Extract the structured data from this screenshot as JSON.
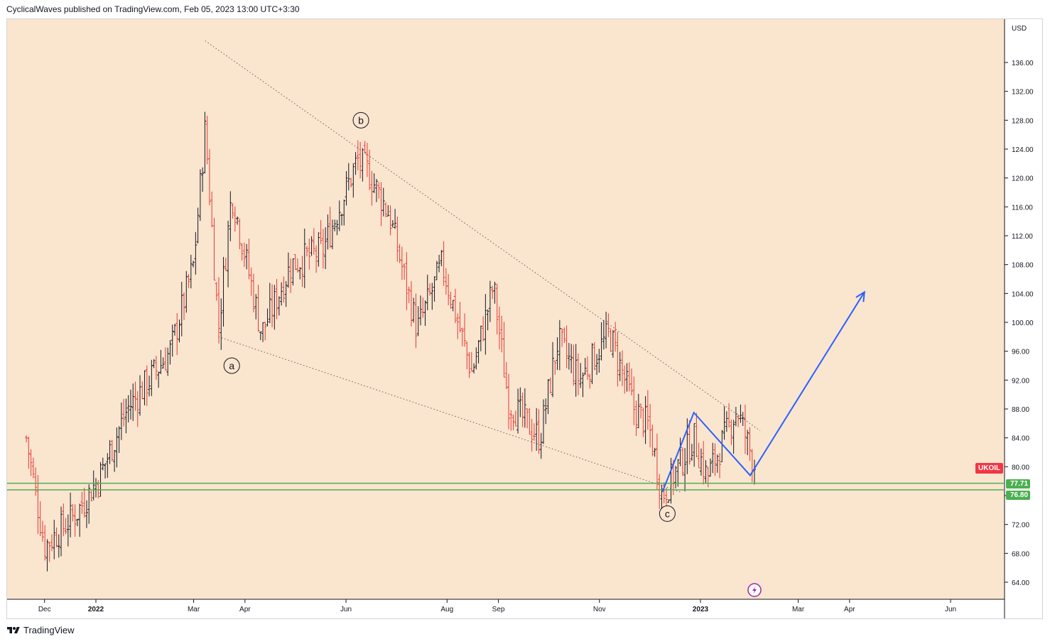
{
  "header": {
    "publisher_text": "CyclicalWaves published on TradingView.com, Feb 05, 2023 13:00 UTC+3:30"
  },
  "footer": {
    "brand": "TradingView"
  },
  "colors": {
    "background": "#fae5cf",
    "up_bar": "#131722",
    "down_bar": "#e53935",
    "support_line": "#4caf50",
    "projection_line": "#2962ff",
    "trend_line": "#787b86",
    "ticker_badge": "#f23645"
  },
  "chart_data": {
    "type": "ohlc",
    "symbol": "UKOIL",
    "currency": "USD",
    "ylim": [
      61,
      142
    ],
    "y_ticks": [
      "64.00",
      "68.00",
      "72.00",
      "76.00",
      "80.00",
      "84.00",
      "88.00",
      "92.00",
      "96.00",
      "100.00",
      "104.00",
      "108.00",
      "112.00",
      "116.00",
      "120.00",
      "124.00",
      "128.00",
      "132.00",
      "136.00"
    ],
    "x_ticks": [
      {
        "label": "Dec",
        "date": "2021-12-01",
        "bold": false
      },
      {
        "label": "2022",
        "date": "2022-01-01",
        "bold": true
      },
      {
        "label": "Mar",
        "date": "2022-03-01",
        "bold": false
      },
      {
        "label": "Apr",
        "date": "2022-04-01",
        "bold": false
      },
      {
        "label": "Jun",
        "date": "2022-06-01",
        "bold": false
      },
      {
        "label": "Aug",
        "date": "2022-08-01",
        "bold": false
      },
      {
        "label": "Sep",
        "date": "2022-09-01",
        "bold": false
      },
      {
        "label": "Nov",
        "date": "2022-11-01",
        "bold": false
      },
      {
        "label": "2023",
        "date": "2023-01-01",
        "bold": true
      },
      {
        "label": "Mar",
        "date": "2023-03-01",
        "bold": false
      },
      {
        "label": "Apr",
        "date": "2023-04-01",
        "bold": false
      },
      {
        "label": "Jun",
        "date": "2023-06-01",
        "bold": false
      }
    ],
    "price_path": [
      {
        "date": "2021-11-20",
        "close": 84.0
      },
      {
        "date": "2021-12-01",
        "close": 69.0
      },
      {
        "date": "2021-12-20",
        "close": 73.5
      },
      {
        "date": "2022-01-03",
        "close": 78.5
      },
      {
        "date": "2022-01-20",
        "close": 88.0
      },
      {
        "date": "2022-02-15",
        "close": 96.0
      },
      {
        "date": "2022-03-01",
        "close": 108.0
      },
      {
        "date": "2022-03-08",
        "close": 127.0
      },
      {
        "date": "2022-03-16",
        "close": 99.0
      },
      {
        "date": "2022-03-24",
        "close": 118.0
      },
      {
        "date": "2022-04-11",
        "close": 98.5
      },
      {
        "date": "2022-04-29",
        "close": 108.0
      },
      {
        "date": "2022-05-18",
        "close": 110.0
      },
      {
        "date": "2022-06-08",
        "close": 122.5
      },
      {
        "date": "2022-06-14",
        "close": 121.0
      },
      {
        "date": "2022-06-27",
        "close": 115.0
      },
      {
        "date": "2022-07-14",
        "close": 99.0
      },
      {
        "date": "2022-07-29",
        "close": 108.0
      },
      {
        "date": "2022-08-16",
        "close": 93.0
      },
      {
        "date": "2022-08-29",
        "close": 105.0
      },
      {
        "date": "2022-09-07",
        "close": 89.0
      },
      {
        "date": "2022-09-26",
        "close": 84.0
      },
      {
        "date": "2022-10-07",
        "close": 97.5
      },
      {
        "date": "2022-10-20",
        "close": 92.0
      },
      {
        "date": "2022-11-07",
        "close": 98.5
      },
      {
        "date": "2022-11-22",
        "close": 88.0
      },
      {
        "date": "2022-12-01",
        "close": 85.5
      },
      {
        "date": "2022-12-09",
        "close": 76.0
      },
      {
        "date": "2022-12-28",
        "close": 84.0
      },
      {
        "date": "2023-01-05",
        "close": 78.5
      },
      {
        "date": "2023-01-23",
        "close": 88.0
      },
      {
        "date": "2023-02-03",
        "close": 80.0
      }
    ],
    "support_levels": [
      "77.71",
      "76.80"
    ],
    "current_price_label": "UKOIL",
    "trend_lines": [
      {
        "name": "upper",
        "from": {
          "date": "2022-03-08",
          "price": 139.0
        },
        "to": {
          "date": "2023-02-06",
          "price": 85.0
        }
      },
      {
        "name": "lower",
        "from": {
          "date": "2022-03-16",
          "price": 98.0
        },
        "to": {
          "date": "2022-12-20",
          "price": 76.5
        }
      }
    ],
    "projection": [
      {
        "date": "2022-12-09",
        "price": 76.5
      },
      {
        "date": "2022-12-28",
        "price": 87.5
      },
      {
        "date": "2023-01-31",
        "price": 78.8
      },
      {
        "date": "2023-04-10",
        "price": 104.2
      }
    ],
    "wave_labels": [
      {
        "text": "a",
        "date": "2022-03-24",
        "price": 94.0
      },
      {
        "text": "b",
        "date": "2022-06-10",
        "price": 128.0
      },
      {
        "text": "c",
        "date": "2022-12-12",
        "price": 73.5
      }
    ]
  }
}
